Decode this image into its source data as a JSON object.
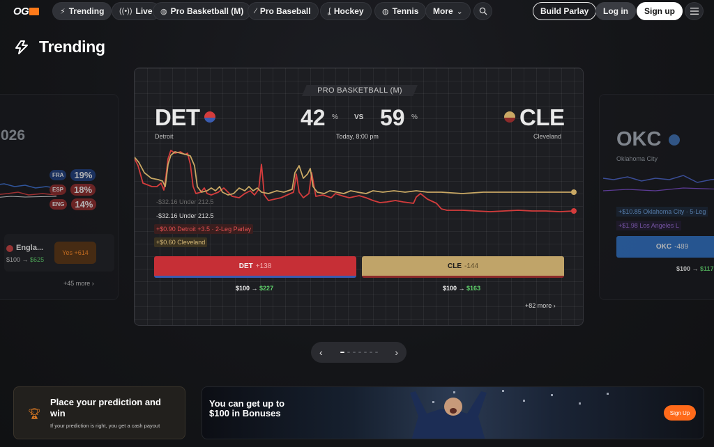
{
  "nav": {
    "logo": "OG",
    "items": [
      {
        "label": "Trending",
        "icon": "bolt-icon"
      },
      {
        "label": "Live",
        "icon": "live-signal-icon"
      },
      {
        "label": "Pro Basketball (M)",
        "icon": "basketball-icon"
      },
      {
        "label": "Pro Baseball",
        "icon": "baseball-icon"
      },
      {
        "label": "Hockey",
        "icon": "hockey-icon"
      },
      {
        "label": "Tennis",
        "icon": "tennis-icon"
      },
      {
        "label": "More",
        "icon": "chevron-down-icon"
      }
    ],
    "build_parlay": "Build Parlay",
    "login": "Log in",
    "signup": "Sign up"
  },
  "trending": {
    "title": "Trending"
  },
  "left_card": {
    "year_fragment": "026",
    "outcomes": [
      {
        "code": "FRA",
        "pct": "19%"
      },
      {
        "code": "ESP",
        "pct": "18%"
      },
      {
        "code": "ENG",
        "pct": "14%"
      }
    ],
    "pick_label": "Engla...",
    "pick_payout": "$100 →",
    "pick_win": "$625",
    "yes_button": "Yes +614",
    "more": "+45 more"
  },
  "main_card": {
    "league": "PRO BASKETBALL (M)",
    "home": {
      "abbr": "DET",
      "name": "Detroit",
      "pct": "42",
      "color": "#d43c3c"
    },
    "away": {
      "abbr": "CLE",
      "name": "Cleveland",
      "pct": "59",
      "color": "#c9a864"
    },
    "pct_sign": "%",
    "vs": "VS",
    "time": "Today, 8:00 pm",
    "activity": [
      "-$32.16 Under 212.5",
      "-$32.16 Under 212.5",
      "+$0.90 Detroit +3.5 · 2-Leg Parlay",
      "+$0.60 Cleveland"
    ],
    "buttons": [
      {
        "team": "DET",
        "odds": "+138",
        "payout": "$100 →",
        "win": "$227"
      },
      {
        "team": "CLE",
        "odds": "-144",
        "payout": "$100 →",
        "win": "$163"
      }
    ],
    "more": "+82 more"
  },
  "right_card": {
    "abbr": "OKC",
    "name": "Oklahoma City",
    "activity": [
      "+$10.85 Oklahoma City · 5-Leg",
      "+$1.98 Los Angeles L"
    ],
    "button": "OKC",
    "odds": "-489",
    "payout": "$100 →",
    "win": "$117"
  },
  "prediction_banner": {
    "title": "Place your prediction and win",
    "subtitle": "If your prediction is right, you get a cash payout"
  },
  "bonus_banner": {
    "title": "You can get up to $100 in Bonuses",
    "cta": "Sign Up"
  },
  "colors": {
    "accent": "#ff6a1a",
    "det": "#d43c3c",
    "cle": "#c9a864",
    "win": "#5fd16b"
  }
}
